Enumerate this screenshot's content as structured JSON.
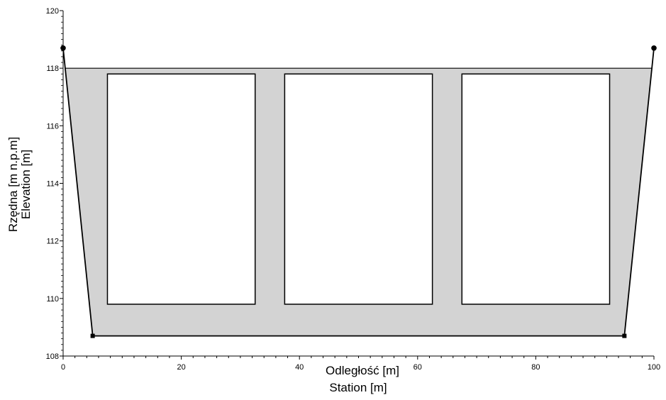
{
  "chart_data": {
    "type": "area",
    "xlabel": [
      "Odległość [m]",
      "Station [m]"
    ],
    "ylabel": [
      "Rzędna [m n.p.m]",
      "Elevation [m]"
    ],
    "xlim": [
      0,
      100
    ],
    "ylim": [
      108,
      120
    ],
    "x_ticks": [
      0,
      20,
      40,
      60,
      80,
      100
    ],
    "y_ticks": [
      108,
      110,
      112,
      114,
      116,
      118,
      120
    ],
    "grid": false,
    "series": [
      {
        "type": "line",
        "x": [
          0,
          5,
          95,
          100
        ],
        "y": [
          118.7,
          108.7,
          108.7,
          118.7
        ]
      }
    ],
    "water_level": 118,
    "culverts": [
      {
        "x": [
          7.5,
          32.5
        ],
        "y": [
          109.8,
          117.8
        ]
      },
      {
        "x": [
          37.5,
          62.5
        ],
        "y": [
          109.8,
          117.8
        ]
      },
      {
        "x": [
          67.5,
          92.5
        ],
        "y": [
          109.8,
          117.8
        ]
      }
    ],
    "colors": {
      "fill": "#d3d3d3",
      "line": "#000000"
    }
  }
}
